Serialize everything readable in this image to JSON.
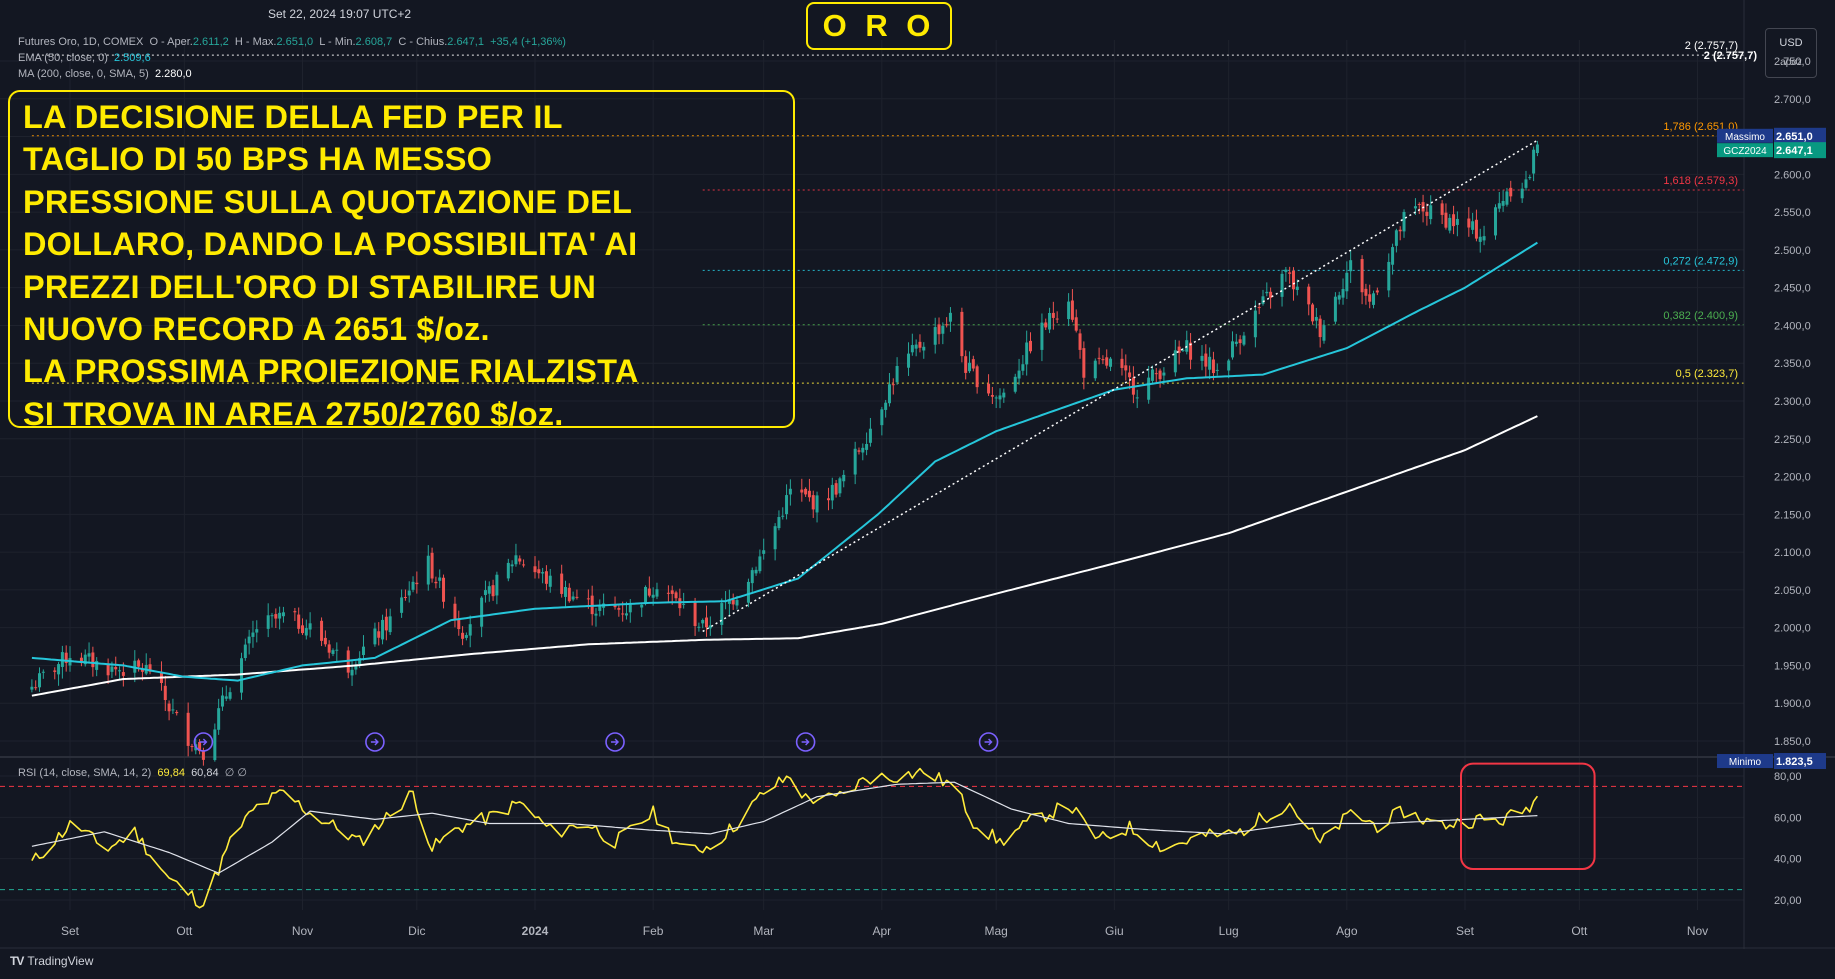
{
  "header": {
    "datetime": "Set 22, 2024 19:07 UTC+2",
    "symbol_line": {
      "label": "Futures Oro, 1D, COMEX",
      "open_label": "O - Aper.",
      "open": "2.611,2",
      "high_label": "H - Max.",
      "high": "2.651,0",
      "low_label": "L - Min.",
      "low": "2.608,7",
      "close_label": "C - Chius.",
      "close": "2.647,1",
      "change": "+35,4 (+1,36%)"
    },
    "ema": {
      "label": "EMA (50, close, 0)",
      "value": "2.509,6"
    },
    "ma": {
      "label": "MA (200, close, 0, SMA, 5)",
      "value": "2.280,0"
    },
    "rsi": {
      "label": "RSI (14, close, SMA, 14, 2)",
      "value": "69,84",
      "ma_value": "60,84",
      "extra": "∅  ∅"
    }
  },
  "banner": "O R O",
  "note_lines": [
    "LA DECISIONE DELLA FED PER IL",
    "TAGLIO DI 50 BPS HA MESSO",
    "PRESSIONE SULLA QUOTAZIONE DEL",
    "DOLLARO, DANDO LA POSSIBILITA' AI",
    "PREZZI DELL'ORO DI STABILIRE UN",
    "NUOVO RECORD A 2651 $/oz.",
    "LA PROSSIMA PROIEZIONE RIALZISTA",
    "SI TROVA IN AREA 2750/2760 $/oz."
  ],
  "currency": {
    "unit": "USD",
    "sub": "apoz"
  },
  "brand": "TradingView",
  "colors": {
    "bg": "#131722",
    "up": "#26a69a",
    "down": "#ef5350",
    "ema": "#26c6da",
    "ma": "#ffffff",
    "rsi": "#ffeb3b",
    "annotation": "#ffeb00"
  },
  "chart_data": [
    {
      "type": "candlestick",
      "timeframe": "1D",
      "ylim": [
        1815,
        2790
      ],
      "yticks": [
        1850,
        1900,
        1950,
        2000,
        2050,
        2100,
        2150,
        2200,
        2250,
        2300,
        2350,
        2400,
        2450,
        2500,
        2550,
        2600,
        2650,
        2700,
        2750
      ],
      "ytick_labels": [
        "1.850,0",
        "1.900,0",
        "1.950,0",
        "2.000,0",
        "2.050,0",
        "2.100,0",
        "2.150,0",
        "2.200,0",
        "2.250,0",
        "2.300,0",
        "2.350,0",
        "2.400,0",
        "2.450,0",
        "2.500,0",
        "2.550,0",
        "2.600,0",
        "2.650,0",
        "2.700,0",
        "2.750,0"
      ],
      "xtick_labels": [
        "Set",
        "Ott",
        "Nov",
        "Dic",
        "2024",
        "Feb",
        "Mar",
        "Apr",
        "Mag",
        "Giu",
        "Lug",
        "Ago",
        "Set",
        "Ott",
        "Nov"
      ],
      "xtick_dates": [
        "2023-09-01",
        "2023-10-01",
        "2023-11-01",
        "2023-12-01",
        "2024-01-01",
        "2024-02-01",
        "2024-03-01",
        "2024-04-01",
        "2024-05-01",
        "2024-06-01",
        "2024-07-01",
        "2024-08-01",
        "2024-09-01",
        "2024-10-01",
        "2024-11-01"
      ],
      "close_path": [
        [
          "2023-08-22",
          1922
        ],
        [
          "2023-09-01",
          1965
        ],
        [
          "2023-09-12",
          1945
        ],
        [
          "2023-09-22",
          1945
        ],
        [
          "2023-09-27",
          1895
        ],
        [
          "2023-10-02",
          1855
        ],
        [
          "2023-10-06",
          1837
        ],
        [
          "2023-10-13",
          1925
        ],
        [
          "2023-10-20",
          2000
        ],
        [
          "2023-10-27",
          2015
        ],
        [
          "2023-11-03",
          2000
        ],
        [
          "2023-11-13",
          1950
        ],
        [
          "2023-11-24",
          2010
        ],
        [
          "2023-11-30",
          2060
        ],
        [
          "2023-12-04",
          2085
        ],
        [
          "2023-12-13",
          1995
        ],
        [
          "2023-12-27",
          2095
        ],
        [
          "2024-01-05",
          2060
        ],
        [
          "2024-01-17",
          2025
        ],
        [
          "2024-01-26",
          2025
        ],
        [
          "2024-02-02",
          2060
        ],
        [
          "2024-02-14",
          2000
        ],
        [
          "2024-02-23",
          2045
        ],
        [
          "2024-03-01",
          2100
        ],
        [
          "2024-03-08",
          2180
        ],
        [
          "2024-03-15",
          2165
        ],
        [
          "2024-03-21",
          2190
        ],
        [
          "2024-03-28",
          2255
        ],
        [
          "2024-04-05",
          2340
        ],
        [
          "2024-04-12",
          2380
        ],
        [
          "2024-04-19",
          2410
        ],
        [
          "2024-04-23",
          2345
        ],
        [
          "2024-05-01",
          2305
        ],
        [
          "2024-05-03",
          2310
        ],
        [
          "2024-05-10",
          2375
        ],
        [
          "2024-05-20",
          2440
        ],
        [
          "2024-05-24",
          2340
        ],
        [
          "2024-05-31",
          2350
        ],
        [
          "2024-06-07",
          2315
        ],
        [
          "2024-06-20",
          2370
        ],
        [
          "2024-06-28",
          2340
        ],
        [
          "2024-07-05",
          2395
        ],
        [
          "2024-07-16",
          2470
        ],
        [
          "2024-07-25",
          2395
        ],
        [
          "2024-08-02",
          2480
        ],
        [
          "2024-08-07",
          2430
        ],
        [
          "2024-08-16",
          2540
        ],
        [
          "2024-08-20",
          2555
        ],
        [
          "2024-08-30",
          2535
        ],
        [
          "2024-09-06",
          2520
        ],
        [
          "2024-09-12",
          2580
        ],
        [
          "2024-09-17",
          2590
        ],
        [
          "2024-09-18",
          2600
        ],
        [
          "2024-09-20",
          2647
        ]
      ],
      "ema50": [
        [
          "2023-08-22",
          1960
        ],
        [
          "2023-09-15",
          1950
        ],
        [
          "2023-10-01",
          1935
        ],
        [
          "2023-10-15",
          1930
        ],
        [
          "2023-11-01",
          1950
        ],
        [
          "2023-11-20",
          1960
        ],
        [
          "2023-12-10",
          2010
        ],
        [
          "2024-01-01",
          2025
        ],
        [
          "2024-02-01",
          2033
        ],
        [
          "2024-02-20",
          2035
        ],
        [
          "2024-03-10",
          2065
        ],
        [
          "2024-03-31",
          2150
        ],
        [
          "2024-04-15",
          2220
        ],
        [
          "2024-05-01",
          2260
        ],
        [
          "2024-05-15",
          2285
        ],
        [
          "2024-06-01",
          2315
        ],
        [
          "2024-06-20",
          2330
        ],
        [
          "2024-07-10",
          2335
        ],
        [
          "2024-08-01",
          2370
        ],
        [
          "2024-08-20",
          2420
        ],
        [
          "2024-09-01",
          2450
        ],
        [
          "2024-09-20",
          2509.6
        ]
      ],
      "ma200": [
        [
          "2023-08-22",
          1910
        ],
        [
          "2023-09-15",
          1932
        ],
        [
          "2023-10-15",
          1938
        ],
        [
          "2023-11-15",
          1950
        ],
        [
          "2023-12-15",
          1965
        ],
        [
          "2024-01-15",
          1978
        ],
        [
          "2024-02-15",
          1984
        ],
        [
          "2024-03-10",
          1986
        ],
        [
          "2024-04-01",
          2005
        ],
        [
          "2024-05-01",
          2045
        ],
        [
          "2024-06-01",
          2085
        ],
        [
          "2024-07-01",
          2125
        ],
        [
          "2024-08-01",
          2180
        ],
        [
          "2024-09-01",
          2235
        ],
        [
          "2024-09-20",
          2280
        ]
      ],
      "trendline": [
        [
          "2024-02-14",
          1995
        ],
        [
          "2024-09-20",
          2645
        ]
      ],
      "fib_levels": [
        {
          "level": 2757.7,
          "label": "2 (2.757,7)",
          "color": "#ffffff",
          "x_start": "2023-08-22"
        },
        {
          "level": 2651.0,
          "label": "1,786 (2.651,0)",
          "color": "#ff9800",
          "x_start": "2023-08-22"
        },
        {
          "level": 2579.3,
          "label": "1,618 (2.579,3)",
          "color": "#f23645",
          "x_start": "2024-02-14"
        },
        {
          "level": 2472.9,
          "label": "0,272 (2.472,9)",
          "color": "#26c6da",
          "x_start": "2024-02-14"
        },
        {
          "level": 2400.9,
          "label": "0,382 (2.400,9)",
          "color": "#4caf50",
          "x_start": "2024-02-14"
        },
        {
          "level": 2323.7,
          "label": "0,5 (2.323,7)",
          "color": "#ffeb3b",
          "x_start": "2023-08-22"
        }
      ],
      "price_tags": [
        {
          "label": "Massimo",
          "value": "2.651,0",
          "level": 2651.0,
          "bg": "#1e3a8a"
        },
        {
          "label": "GCZ2024",
          "value": "2.647,1",
          "level": 2632.0,
          "bg": "#089981"
        },
        {
          "label": "Minimo",
          "value": "1.823,5",
          "level": 1823.5,
          "bg": "#1e3a8a"
        }
      ],
      "event_markers": [
        "2023-10-06",
        "2023-11-20",
        "2024-01-22",
        "2024-03-12",
        "2024-04-29"
      ]
    },
    {
      "type": "line",
      "name": "RSI",
      "ylim": [
        15,
        87
      ],
      "yticks": [
        20,
        40,
        60,
        80
      ],
      "ytick_labels": [
        "20,00",
        "40,00",
        "60,00",
        "80,00"
      ],
      "bands": [
        {
          "level": 75,
          "color": "#f23645"
        },
        {
          "level": 25,
          "color": "#22ab94"
        }
      ],
      "rsi_path": [
        [
          "2023-08-22",
          38
        ],
        [
          "2023-09-02",
          58
        ],
        [
          "2023-09-10",
          44
        ],
        [
          "2023-09-18",
          53
        ],
        [
          "2023-09-27",
          30
        ],
        [
          "2023-10-06",
          18
        ],
        [
          "2023-10-14",
          52
        ],
        [
          "2023-10-20",
          65
        ],
        [
          "2023-10-27",
          72
        ],
        [
          "2023-11-03",
          62
        ],
        [
          "2023-11-10",
          55
        ],
        [
          "2023-11-16",
          48
        ],
        [
          "2023-11-23",
          60
        ],
        [
          "2023-11-30",
          72
        ],
        [
          "2023-12-05",
          45
        ],
        [
          "2023-12-12",
          55
        ],
        [
          "2023-12-20",
          60
        ],
        [
          "2023-12-28",
          67
        ],
        [
          "2024-01-06",
          52
        ],
        [
          "2024-01-14",
          58
        ],
        [
          "2024-01-22",
          48
        ],
        [
          "2024-02-01",
          62
        ],
        [
          "2024-02-09",
          44
        ],
        [
          "2024-02-16",
          46
        ],
        [
          "2024-02-23",
          57
        ],
        [
          "2024-03-01",
          72
        ],
        [
          "2024-03-08",
          80
        ],
        [
          "2024-03-12",
          69
        ],
        [
          "2024-03-20",
          69
        ],
        [
          "2024-03-28",
          79
        ],
        [
          "2024-04-05",
          80
        ],
        [
          "2024-04-12",
          82
        ],
        [
          "2024-04-20",
          75
        ],
        [
          "2024-04-25",
          58
        ],
        [
          "2024-05-02",
          48
        ],
        [
          "2024-05-10",
          58
        ],
        [
          "2024-05-20",
          66
        ],
        [
          "2024-05-28",
          49
        ],
        [
          "2024-06-05",
          55
        ],
        [
          "2024-06-14",
          45
        ],
        [
          "2024-06-24",
          51
        ],
        [
          "2024-07-03",
          52
        ],
        [
          "2024-07-10",
          60
        ],
        [
          "2024-07-17",
          67
        ],
        [
          "2024-07-25",
          47
        ],
        [
          "2024-08-02",
          62
        ],
        [
          "2024-08-09",
          56
        ],
        [
          "2024-08-16",
          63
        ],
        [
          "2024-08-25",
          56
        ],
        [
          "2024-09-05",
          59
        ],
        [
          "2024-09-10",
          58
        ],
        [
          "2024-09-17",
          64
        ],
        [
          "2024-09-20",
          69.84
        ]
      ],
      "rsi_ma_path": [
        [
          "2023-08-22",
          46
        ],
        [
          "2023-09-10",
          53
        ],
        [
          "2023-09-27",
          43
        ],
        [
          "2023-10-10",
          33
        ],
        [
          "2023-10-24",
          48
        ],
        [
          "2023-11-03",
          63
        ],
        [
          "2023-11-20",
          59
        ],
        [
          "2023-12-05",
          62
        ],
        [
          "2023-12-20",
          57
        ],
        [
          "2024-01-10",
          57
        ],
        [
          "2024-01-30",
          54
        ],
        [
          "2024-02-16",
          52
        ],
        [
          "2024-03-01",
          58
        ],
        [
          "2024-03-15",
          70
        ],
        [
          "2024-04-05",
          76
        ],
        [
          "2024-04-20",
          77
        ],
        [
          "2024-05-05",
          64
        ],
        [
          "2024-05-20",
          57
        ],
        [
          "2024-06-10",
          54
        ],
        [
          "2024-06-30",
          52
        ],
        [
          "2024-07-20",
          57
        ],
        [
          "2024-08-10",
          57
        ],
        [
          "2024-09-01",
          59
        ],
        [
          "2024-09-20",
          60.84
        ]
      ],
      "highlight_box": {
        "x_start": "2024-09-01",
        "x_end": "2024-10-05",
        "y_top": 86,
        "y_bottom": 35,
        "color": "#f23645"
      }
    }
  ]
}
